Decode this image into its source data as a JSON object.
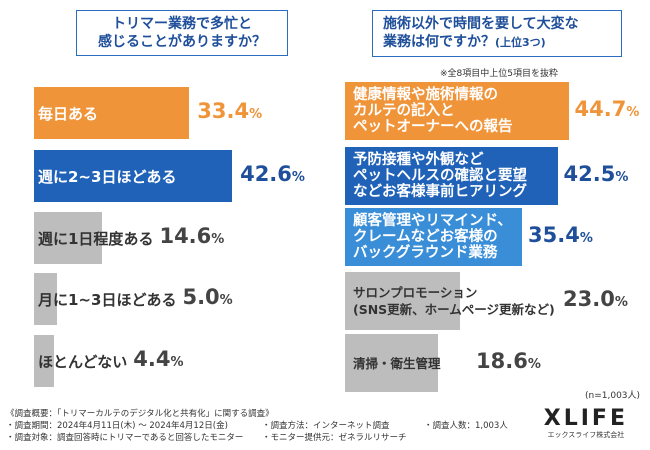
{
  "questions": {
    "left": "トリマー業務で多忙と感じることがありますか？",
    "left_line1": "トリマー業務で多忙と",
    "left_line2": "感じることがありますか？",
    "right_line1": "施術以外で時間を要して大変な",
    "right_line2": "業務は何ですか？",
    "right_sub": "(上位3つ)",
    "right_note": "※全8項目中上位5項目を抜粋"
  },
  "colors": {
    "orange": "#f0943a",
    "blue": "#1f62b8",
    "lightblue": "#3a8ed8",
    "gray": "#bdbdbd",
    "valblue": "#1f4f9a"
  },
  "chart_data": [
    {
      "type": "bar",
      "title": "トリマー業務で多忙と感じることがありますか？",
      "categories": [
        "毎日ある",
        "週に2~3日ほどある",
        "週に1日程度ある",
        "月に1~3日ほどある",
        "ほとんどない"
      ],
      "values": [
        33.4,
        42.6,
        14.6,
        5.0,
        4.4
      ],
      "value_labels": [
        {
          "int": "33.",
          "dec": "4",
          "pct": "%"
        },
        {
          "int": "42.",
          "dec": "6",
          "pct": "%"
        },
        {
          "int": "14.",
          "dec": "6",
          "pct": "%"
        },
        {
          "int": "5.",
          "dec": "0",
          "pct": "%"
        },
        {
          "int": "4.",
          "dec": "4",
          "pct": "%"
        }
      ],
      "unit": "%"
    },
    {
      "type": "bar",
      "title": "施術以外で時間を要して大変な業務は何ですか？(上位3つ)",
      "categories": [
        [
          "健康情報や施術情報の",
          "カルテの記入と",
          "ペットオーナーへの報告"
        ],
        [
          "予防接種や外観など",
          "ペットヘルスの確認と要望",
          "などお客様事前ヒアリング"
        ],
        [
          "顧客管理やリマインド、",
          "クレームなどお客様の",
          "バックグラウンド業務"
        ],
        [
          "サロンプロモーション",
          "(SNS更新、ホームページ更新など)"
        ],
        [
          "清掃・衛生管理"
        ]
      ],
      "values": [
        44.7,
        42.5,
        35.4,
        23.0,
        18.6
      ],
      "value_labels": [
        {
          "int": "44.",
          "dec": "7",
          "pct": "%"
        },
        {
          "int": "42.",
          "dec": "5",
          "pct": "%"
        },
        {
          "int": "35.",
          "dec": "4",
          "pct": "%"
        },
        {
          "int": "23.",
          "dec": "0",
          "pct": "%"
        },
        {
          "int": "18.",
          "dec": "6",
          "pct": "%"
        }
      ],
      "unit": "%",
      "n": "(n=1,003人)"
    }
  ],
  "footer": {
    "l1": "《調査概要：「トリマーカルテのデジタル化と共有化」に関する調査》",
    "l2": "・調査期間：2024年4月11日(木) ～ 2024年4月12日(金)",
    "l3": "・調査対象：調査回答時にトリマーであると回答したモニター",
    "m1": "・調査方法：インターネット調査",
    "m2": "・モニター提供元：ゼネラルリサーチ",
    "r1": "・調査人数：1,003人"
  },
  "logo": {
    "brand": "XLIFE",
    "company": "エックスライフ株式会社"
  }
}
